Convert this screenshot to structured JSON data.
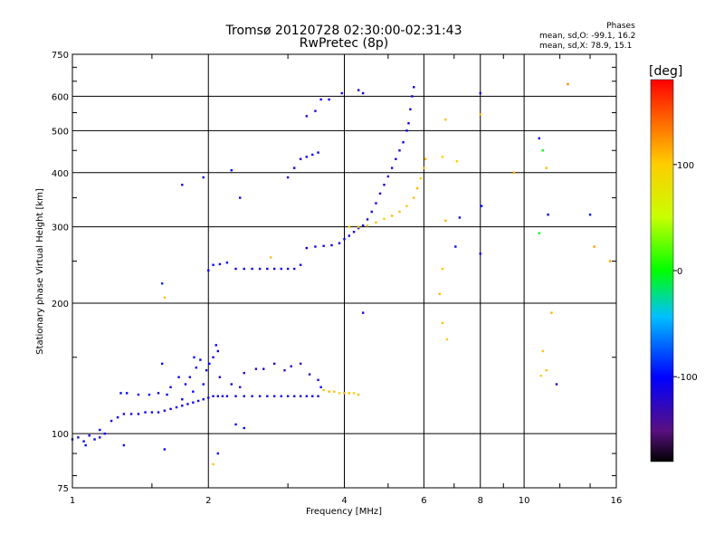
{
  "header": {
    "title_line1": "Tromsø 20120728 02:30:00-02:31:43",
    "title_line2": "RwPretec (8p)"
  },
  "phases": {
    "heading": "Phases",
    "o_label": "mean, sd,O:",
    "o_values": "-99.1, 16.2",
    "x_label": "mean, sd,X:",
    "x_values": "78.9, 15.1"
  },
  "colorbar": {
    "unit": "[deg]",
    "ticks": [
      {
        "value": 100,
        "label": "100"
      },
      {
        "value": 0,
        "label": "0"
      },
      {
        "value": -100,
        "label": "-100"
      }
    ],
    "range": [
      -180,
      180
    ]
  },
  "chart_data": {
    "type": "scatter",
    "xlabel": "Frequency [MHz]",
    "ylabel": "Stationary phase Virtual Height [km]",
    "x_scale": "log",
    "y_scale": "log",
    "xlim": [
      1,
      16
    ],
    "ylim": [
      75,
      750
    ],
    "x_ticks": [
      {
        "value": 1,
        "label": "1"
      },
      {
        "value": 2,
        "label": "2"
      },
      {
        "value": 4,
        "label": "4"
      },
      {
        "value": 6,
        "label": "6"
      },
      {
        "value": 8,
        "label": "8"
      },
      {
        "value": 10,
        "label": "10"
      },
      {
        "value": 16,
        "label": "16"
      }
    ],
    "y_ticks": [
      {
        "value": 75,
        "label": "75"
      },
      {
        "value": 100,
        "label": "100"
      },
      {
        "value": 200,
        "label": "200"
      },
      {
        "value": 300,
        "label": "300"
      },
      {
        "value": 400,
        "label": "400"
      },
      {
        "value": 500,
        "label": "500"
      },
      {
        "value": 600,
        "label": "600"
      },
      {
        "value": 750,
        "label": "750"
      }
    ],
    "grid": true,
    "points_format": "[frequency_MHz, virtual_height_km, phase_deg]",
    "points": [
      [
        1.0,
        97,
        -110
      ],
      [
        1.03,
        98,
        -110
      ],
      [
        1.06,
        96,
        -105
      ],
      [
        1.09,
        99,
        -110
      ],
      [
        1.12,
        97,
        -100
      ],
      [
        1.15,
        98,
        -110
      ],
      [
        1.18,
        100,
        -105
      ],
      [
        1.22,
        107,
        -110
      ],
      [
        1.26,
        109,
        -105
      ],
      [
        1.3,
        111,
        -110
      ],
      [
        1.35,
        111,
        -115
      ],
      [
        1.4,
        111,
        -110
      ],
      [
        1.45,
        112,
        -105
      ],
      [
        1.5,
        112,
        -110
      ],
      [
        1.55,
        112,
        -110
      ],
      [
        1.6,
        113,
        -105
      ],
      [
        1.65,
        114,
        -110
      ],
      [
        1.7,
        115,
        -105
      ],
      [
        1.75,
        116,
        -110
      ],
      [
        1.8,
        117,
        -110
      ],
      [
        1.85,
        118,
        -115
      ],
      [
        1.9,
        119,
        -110
      ],
      [
        1.95,
        120,
        -105
      ],
      [
        2.0,
        121,
        -110
      ],
      [
        2.05,
        122,
        -110
      ],
      [
        2.1,
        122,
        -115
      ],
      [
        2.15,
        122,
        -110
      ],
      [
        2.2,
        122,
        -105
      ],
      [
        2.3,
        122,
        -110
      ],
      [
        2.4,
        122,
        -110
      ],
      [
        2.5,
        122,
        -115
      ],
      [
        2.6,
        122,
        -110
      ],
      [
        2.7,
        122,
        -110
      ],
      [
        2.8,
        122,
        -105
      ],
      [
        2.9,
        122,
        -110
      ],
      [
        3.0,
        122,
        -110
      ],
      [
        3.1,
        122,
        -115
      ],
      [
        3.2,
        122,
        -120
      ],
      [
        3.3,
        122,
        -110
      ],
      [
        3.4,
        122,
        -110
      ],
      [
        3.5,
        122,
        -115
      ],
      [
        1.28,
        124,
        -105
      ],
      [
        1.32,
        124,
        -100
      ],
      [
        1.4,
        123,
        -105
      ],
      [
        1.48,
        123,
        -100
      ],
      [
        1.55,
        124,
        -105
      ],
      [
        1.62,
        123,
        -100
      ],
      [
        1.85,
        125,
        -105
      ],
      [
        1.95,
        130,
        -100
      ],
      [
        1.98,
        140,
        -110
      ],
      [
        2.01,
        145,
        -100
      ],
      [
        2.05,
        150,
        -110
      ],
      [
        2.08,
        160,
        -100
      ],
      [
        2.1,
        155,
        -105
      ],
      [
        2.12,
        135,
        -110
      ],
      [
        1.78,
        130,
        -105
      ],
      [
        1.82,
        135,
        -110
      ],
      [
        1.88,
        142,
        -105
      ],
      [
        1.92,
        148,
        -110
      ],
      [
        2.4,
        138,
        -115
      ],
      [
        2.55,
        141,
        -120
      ],
      [
        2.65,
        141,
        -115
      ],
      [
        2.8,
        145,
        -120
      ],
      [
        2.95,
        140,
        -125
      ],
      [
        3.05,
        143,
        -120
      ],
      [
        3.2,
        145,
        -130
      ],
      [
        3.35,
        137,
        -125
      ],
      [
        3.5,
        133,
        -120
      ],
      [
        3.55,
        128,
        -115
      ],
      [
        2.25,
        130,
        -110
      ],
      [
        2.35,
        128,
        -115
      ],
      [
        1.65,
        128,
        -110
      ],
      [
        1.72,
        135,
        -105
      ],
      [
        1.75,
        120,
        -100
      ],
      [
        1.58,
        145,
        -100
      ],
      [
        1.86,
        150,
        -95
      ],
      [
        3.6,
        126,
        100
      ],
      [
        3.7,
        125,
        110
      ],
      [
        3.8,
        125,
        105
      ],
      [
        3.9,
        124,
        100
      ],
      [
        4.0,
        124,
        110
      ],
      [
        4.1,
        124,
        105
      ],
      [
        4.2,
        124,
        100
      ],
      [
        4.3,
        123,
        105
      ],
      [
        1.58,
        222,
        -90
      ],
      [
        1.6,
        206,
        105
      ],
      [
        2.0,
        238,
        -105
      ],
      [
        2.05,
        245,
        -100
      ],
      [
        2.12,
        246,
        -100
      ],
      [
        2.2,
        248,
        -105
      ],
      [
        2.3,
        240,
        -110
      ],
      [
        2.4,
        240,
        -105
      ],
      [
        2.5,
        240,
        -110
      ],
      [
        2.6,
        240,
        -110
      ],
      [
        2.7,
        240,
        -105
      ],
      [
        2.8,
        240,
        -110
      ],
      [
        2.9,
        240,
        -115
      ],
      [
        3.0,
        240,
        -110
      ],
      [
        3.1,
        240,
        -110
      ],
      [
        3.2,
        245,
        -115
      ],
      [
        2.75,
        255,
        105
      ],
      [
        3.3,
        268,
        -105
      ],
      [
        3.45,
        270,
        -110
      ],
      [
        3.6,
        271,
        -110
      ],
      [
        3.75,
        272,
        -105
      ],
      [
        3.9,
        275,
        -110
      ],
      [
        4.0,
        281,
        -105
      ],
      [
        4.1,
        286,
        -110
      ],
      [
        4.2,
        292,
        -105
      ],
      [
        4.3,
        298,
        -110
      ],
      [
        4.4,
        302,
        -110
      ],
      [
        4.5,
        312,
        -105
      ],
      [
        4.6,
        325,
        -110
      ],
      [
        4.7,
        340,
        -110
      ],
      [
        4.8,
        358,
        -115
      ],
      [
        4.9,
        375,
        -110
      ],
      [
        5.0,
        392,
        -110
      ],
      [
        5.1,
        410,
        -115
      ],
      [
        5.2,
        430,
        -110
      ],
      [
        5.3,
        450,
        -115
      ],
      [
        5.4,
        470,
        -110
      ],
      [
        5.5,
        500,
        -105
      ],
      [
        5.55,
        520,
        -110
      ],
      [
        5.6,
        560,
        -110
      ],
      [
        5.65,
        600,
        -105
      ],
      [
        5.7,
        630,
        -110
      ],
      [
        4.1,
        300,
        100
      ],
      [
        4.3,
        300,
        105
      ],
      [
        4.5,
        302,
        100
      ],
      [
        4.7,
        307,
        105
      ],
      [
        4.9,
        313,
        100
      ],
      [
        5.1,
        318,
        110
      ],
      [
        5.3,
        325,
        105
      ],
      [
        5.5,
        335,
        100
      ],
      [
        5.7,
        350,
        105
      ],
      [
        5.8,
        368,
        110
      ],
      [
        5.9,
        388,
        100
      ],
      [
        6.0,
        410,
        105
      ],
      [
        6.05,
        430,
        110
      ],
      [
        2.25,
        405,
        -100
      ],
      [
        2.35,
        350,
        -100
      ],
      [
        3.0,
        390,
        -110
      ],
      [
        3.1,
        410,
        -105
      ],
      [
        3.2,
        430,
        -115
      ],
      [
        3.3,
        435,
        -110
      ],
      [
        3.4,
        440,
        -110
      ],
      [
        3.5,
        445,
        -105
      ],
      [
        3.3,
        540,
        -120
      ],
      [
        3.45,
        555,
        -115
      ],
      [
        3.55,
        590,
        -110
      ],
      [
        3.7,
        590,
        -105
      ],
      [
        3.95,
        610,
        -100
      ],
      [
        4.3,
        620,
        -110
      ],
      [
        4.4,
        610,
        -105
      ],
      [
        1.75,
        375,
        -110
      ],
      [
        1.95,
        390,
        -105
      ],
      [
        6.7,
        530,
        105
      ],
      [
        6.6,
        435,
        100
      ],
      [
        6.7,
        310,
        110
      ],
      [
        6.6,
        240,
        105
      ],
      [
        6.5,
        210,
        110
      ],
      [
        6.6,
        180,
        105
      ],
      [
        6.75,
        165,
        100
      ],
      [
        7.1,
        425,
        100
      ],
      [
        7.2,
        315,
        -100
      ],
      [
        7.05,
        270,
        -100
      ],
      [
        8.0,
        610,
        -110
      ],
      [
        8.0,
        545,
        110
      ],
      [
        8.05,
        335,
        -100
      ],
      [
        8.0,
        260,
        -110
      ],
      [
        10.8,
        480,
        -100
      ],
      [
        11.0,
        450,
        0
      ],
      [
        11.2,
        410,
        110
      ],
      [
        11.3,
        320,
        -100
      ],
      [
        10.8,
        290,
        0
      ],
      [
        11.5,
        190,
        110
      ],
      [
        11.0,
        155,
        105
      ],
      [
        11.2,
        140,
        105
      ],
      [
        10.9,
        136,
        100
      ],
      [
        11.8,
        130,
        -110
      ],
      [
        12.5,
        640,
        130
      ],
      [
        14.0,
        320,
        -100
      ],
      [
        14.3,
        270,
        120
      ],
      [
        15.5,
        250,
        120
      ],
      [
        9.5,
        400,
        110
      ],
      [
        1.07,
        94,
        -100
      ],
      [
        1.15,
        102,
        -100
      ],
      [
        1.3,
        94,
        -100
      ],
      [
        1.6,
        92,
        -105
      ],
      [
        2.1,
        90,
        -100
      ],
      [
        2.05,
        85,
        105
      ],
      [
        2.3,
        105,
        -100
      ],
      [
        2.4,
        103,
        -100
      ],
      [
        4.4,
        190,
        -110
      ]
    ]
  }
}
